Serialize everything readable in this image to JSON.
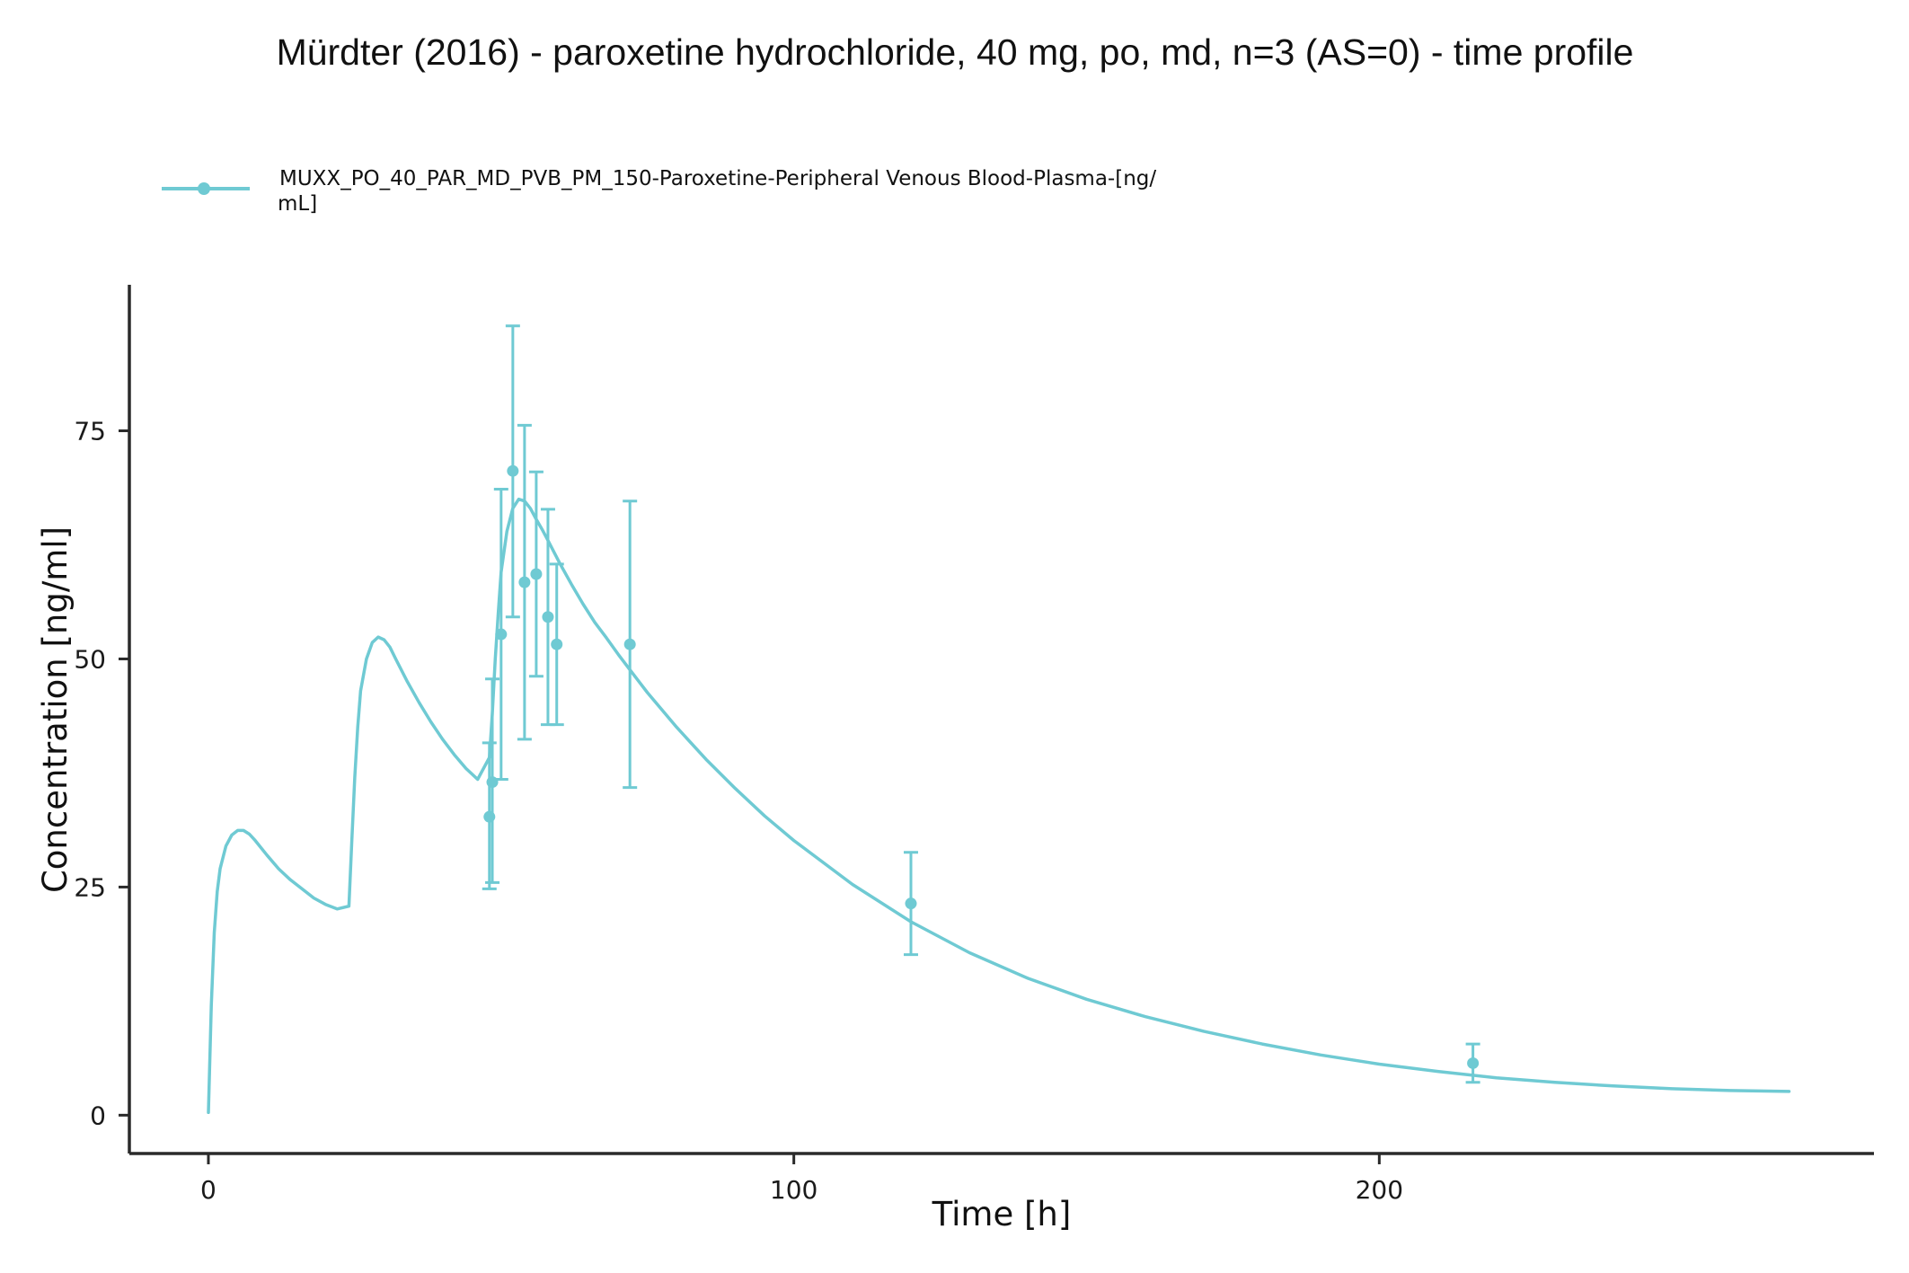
{
  "chart_data": {
    "type": "line",
    "title": "Mürdter (2016) - paroxetine hydrochloride, 40 mg, po, md, n=3 (AS=0) - time profile",
    "xlabel": "Time [h]",
    "ylabel": "Concentration [ng/ml]",
    "xlim": [
      -13.5,
      284.5
    ],
    "ylim": [
      -4.2,
      91
    ],
    "x_ticks": [
      0,
      100,
      200
    ],
    "y_ticks": [
      0,
      25,
      50,
      75
    ],
    "grid": false,
    "legend": {
      "position": "top-left",
      "entries": [
        {
          "label_line1": "MUXX_PO_40_PAR_MD_PVB_PM_150-Paroxetine-Peripheral Venous Blood-Plasma-[ng/",
          "label_line2": "mL]"
        }
      ]
    },
    "color": "#6fcad3",
    "series": [
      {
        "name": "MUXX_PO_40_PAR_MD_PVB_PM_150-Paroxetine-Peripheral Venous Blood-Plasma-[ng/mL]",
        "kind": "simulation",
        "x": [
          0,
          0.5,
          1,
          1.5,
          2,
          3,
          4,
          5,
          6,
          7,
          8,
          10,
          12,
          14,
          16,
          18,
          20,
          22,
          24,
          24.5,
          25,
          25.5,
          26,
          27,
          28,
          29,
          30,
          31,
          32,
          34,
          36,
          38,
          40,
          42,
          44,
          46,
          48,
          48.5,
          49,
          49.5,
          50,
          51,
          52,
          53,
          54,
          55,
          56,
          57,
          58,
          60,
          62,
          64,
          66,
          68,
          70,
          72,
          75,
          80,
          85,
          90,
          95,
          100,
          110,
          120,
          130,
          140,
          150,
          160,
          170,
          180,
          190,
          200,
          210,
          220,
          230,
          240,
          250,
          260,
          270
        ],
        "y": [
          0.3,
          12,
          20,
          24.5,
          27,
          29.5,
          30.7,
          31.2,
          31.2,
          30.8,
          30.1,
          28.5,
          27,
          25.8,
          24.8,
          23.8,
          23.1,
          22.6,
          22.9,
          30,
          37,
          42.5,
          46.5,
          50,
          51.8,
          52.4,
          52.1,
          51.3,
          50,
          47.5,
          45.2,
          43.1,
          41.2,
          39.5,
          38,
          36.8,
          39.2,
          44,
          50,
          55,
          59.5,
          64,
          66.5,
          67.5,
          67.3,
          66.5,
          65.3,
          64.2,
          63,
          60.5,
          58.2,
          56,
          54,
          52.3,
          50.5,
          48.8,
          46.3,
          42.5,
          39,
          35.8,
          32.8,
          30.1,
          25.3,
          21.2,
          17.8,
          15,
          12.7,
          10.8,
          9.2,
          7.8,
          6.6,
          5.6,
          4.8,
          4.1,
          3.6,
          3.2,
          2.9,
          2.7,
          2.6
        ]
      },
      {
        "name": "MUXX_PO_40_PAR_MD_PVB_PM_150-Paroxetine-Peripheral Venous Blood-Plasma-[ng/mL]",
        "kind": "observed",
        "points": [
          {
            "x": 48.0,
            "y": 32.7,
            "low": 24.8,
            "high": 40.8
          },
          {
            "x": 48.5,
            "y": 36.5,
            "low": 25.5,
            "high": 47.8
          },
          {
            "x": 50.0,
            "y": 52.7,
            "low": 36.8,
            "high": 68.6
          },
          {
            "x": 52.0,
            "y": 70.6,
            "low": 54.6,
            "high": 86.5
          },
          {
            "x": 54.0,
            "y": 58.4,
            "low": 41.2,
            "high": 75.6
          },
          {
            "x": 56.0,
            "y": 59.3,
            "low": 48.1,
            "high": 70.5
          },
          {
            "x": 58.0,
            "y": 54.6,
            "low": 42.8,
            "high": 66.4
          },
          {
            "x": 59.5,
            "y": 51.6,
            "low": 42.8,
            "high": 60.4
          },
          {
            "x": 72.0,
            "y": 51.6,
            "low": 35.9,
            "high": 67.3
          },
          {
            "x": 120.0,
            "y": 23.2,
            "low": 17.6,
            "high": 28.8
          },
          {
            "x": 216.0,
            "y": 5.7,
            "low": 3.6,
            "high": 7.8
          }
        ]
      }
    ]
  }
}
